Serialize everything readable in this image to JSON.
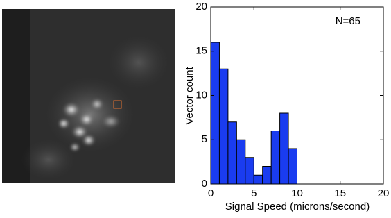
{
  "chart_data": {
    "type": "histogram",
    "bins": [
      0,
      1,
      2,
      3,
      4,
      5,
      6,
      7,
      8,
      9,
      10
    ],
    "values": [
      16,
      13,
      7,
      5,
      3,
      1,
      2,
      6,
      8,
      4
    ],
    "color": "#1a3cf0",
    "xlim": [
      0,
      20
    ],
    "xticks": [
      0,
      5,
      10,
      15,
      20
    ],
    "ylim": [
      0,
      20
    ],
    "yticks": [
      0,
      5,
      10,
      15,
      20
    ],
    "xlabel": "Signal Speed (microns/second)",
    "ylabel": "Vector count",
    "annotation": "N=65"
  }
}
